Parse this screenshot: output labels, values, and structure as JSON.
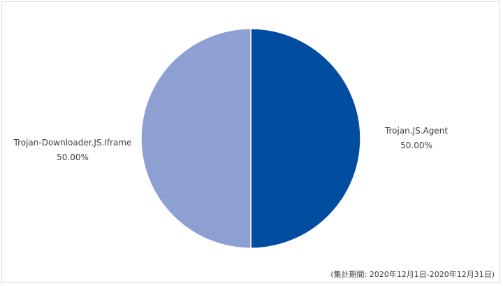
{
  "chart_data": {
    "type": "pie",
    "slices": [
      {
        "name": "Trojan.JS.Agent",
        "value": 50.0,
        "label": "50.00%",
        "color": "#004c9f"
      },
      {
        "name": "Trojan-Downloader.JS.Iframe",
        "value": 50.0,
        "label": "50.00%",
        "color": "#8e9fd1"
      }
    ],
    "start_angle": "12 o'clock",
    "direction": "clockwise",
    "legend": "none (data labels beside slices)"
  },
  "footnote": "(集計期間: 2020年12月1日-2020年12月31日)"
}
